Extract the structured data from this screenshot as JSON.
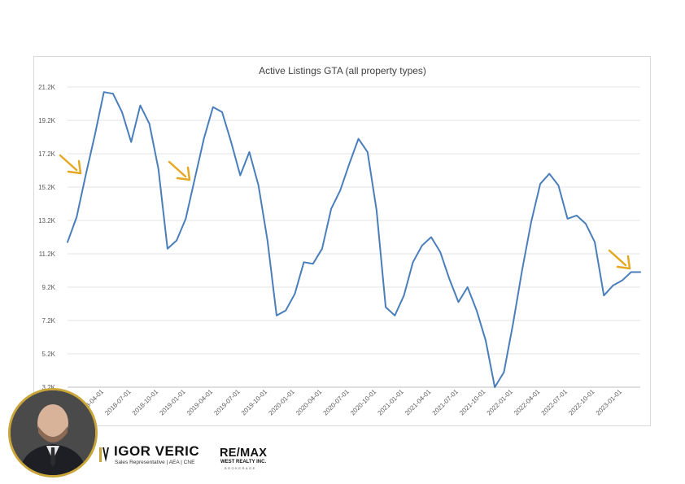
{
  "chart_data": {
    "type": "line",
    "title": "Active Listings GTA (all property types)",
    "xlabel": "",
    "ylabel": "",
    "y_ticks": [
      "3.2K",
      "5.2K",
      "7.2K",
      "9.2K",
      "11.2K",
      "13.2K",
      "15.2K",
      "17.2K",
      "19.2K",
      "21.2K"
    ],
    "ylim": [
      3200,
      21200
    ],
    "x_ticks": [
      {
        "index": 4,
        "label": "2018-04-01"
      },
      {
        "index": 7,
        "label": "2018-07-01"
      },
      {
        "index": 10,
        "label": "2018-10-01"
      },
      {
        "index": 13,
        "label": "2019-01-01"
      },
      {
        "index": 16,
        "label": "2019-04-01"
      },
      {
        "index": 19,
        "label": "2019-07-01"
      },
      {
        "index": 22,
        "label": "2019-10-01"
      },
      {
        "index": 25,
        "label": "2020-01-01"
      },
      {
        "index": 28,
        "label": "2020-04-01"
      },
      {
        "index": 31,
        "label": "2020-07-01"
      },
      {
        "index": 34,
        "label": "2020-10-01"
      },
      {
        "index": 37,
        "label": "2021-01-01"
      },
      {
        "index": 40,
        "label": "2021-04-01"
      },
      {
        "index": 43,
        "label": "2021-07-01"
      },
      {
        "index": 46,
        "label": "2021-10-01"
      },
      {
        "index": 49,
        "label": "2022-01-01"
      },
      {
        "index": 52,
        "label": "2022-04-01"
      },
      {
        "index": 55,
        "label": "2022-07-01"
      },
      {
        "index": 58,
        "label": "2022-10-01"
      },
      {
        "index": 61,
        "label": "2023-01-01"
      }
    ],
    "series": [
      {
        "name": "",
        "color": "#4a7ebb",
        "x": [
          "2018-01-01",
          "2018-02-01",
          "2018-03-01",
          "2018-04-01",
          "2018-05-01",
          "2018-06-01",
          "2018-07-01",
          "2018-08-01",
          "2018-09-01",
          "2018-10-01",
          "2018-11-01",
          "2018-12-01",
          "2019-01-01",
          "2019-02-01",
          "2019-03-01",
          "2019-04-01",
          "2019-05-01",
          "2019-06-01",
          "2019-07-01",
          "2019-08-01",
          "2019-09-01",
          "2019-10-01",
          "2019-11-01",
          "2019-12-01",
          "2020-01-01",
          "2020-02-01",
          "2020-03-01",
          "2020-04-01",
          "2020-05-01",
          "2020-06-01",
          "2020-07-01",
          "2020-08-01",
          "2020-09-01",
          "2020-10-01",
          "2020-11-01",
          "2020-12-01",
          "2021-01-01",
          "2021-02-01",
          "2021-03-01",
          "2021-04-01",
          "2021-05-01",
          "2021-06-01",
          "2021-07-01",
          "2021-08-01",
          "2021-09-01",
          "2021-10-01",
          "2021-11-01",
          "2021-12-01",
          "2022-01-01",
          "2022-02-01",
          "2022-03-01",
          "2022-04-01",
          "2022-05-01",
          "2022-06-01",
          "2022-07-01",
          "2022-08-01",
          "2022-09-01",
          "2022-10-01",
          "2022-11-01",
          "2022-12-01",
          "2023-01-01",
          "2023-02-01",
          "2023-03-01",
          "2023-04-01"
        ],
        "values": [
          11900,
          13400,
          15900,
          18300,
          20900,
          20800,
          19700,
          17900,
          20100,
          19000,
          16300,
          11500,
          12000,
          13300,
          15700,
          18100,
          20000,
          19700,
          17900,
          15900,
          17300,
          15300,
          12000,
          7500,
          7800,
          8800,
          10700,
          10600,
          11500,
          13900,
          15000,
          16600,
          18100,
          17300,
          13800,
          8000,
          7500,
          8700,
          10700,
          11700,
          12200,
          11300,
          9700,
          8300,
          9200,
          7800,
          6000,
          3200,
          4100,
          7000,
          10200,
          13100,
          15400,
          16000,
          15300,
          13300,
          13500,
          13000,
          11900,
          8700,
          9300,
          9600,
          10100,
          10100
        ]
      }
    ],
    "annotations": [
      "down-arrow",
      "down-arrow",
      "down-arrow"
    ],
    "grid": true,
    "legend": "none"
  },
  "footer": {
    "agent_name": "IGOR VERIC",
    "agent_role": "Sales Representative | AEA | CNE",
    "brokerage_logo": "RE/MAX",
    "brokerage_name": "WEST REALTY INC.",
    "brokerage_tagline": "BROKERAGE",
    "avatar_icon": "portrait-photo",
    "accent_color": "#c9a53a"
  }
}
